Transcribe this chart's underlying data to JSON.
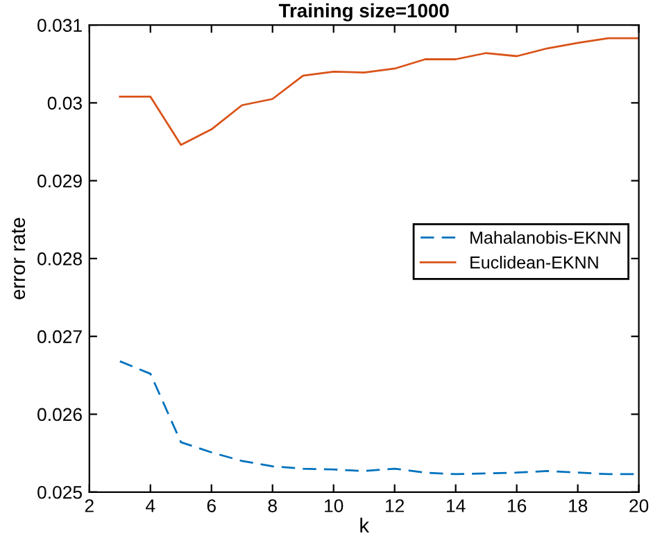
{
  "chart_data": {
    "type": "line",
    "title": "Training size=1000",
    "xlabel": "k",
    "ylabel": "error rate",
    "x": [
      3,
      4,
      5,
      6,
      7,
      8,
      9,
      10,
      11,
      12,
      13,
      14,
      15,
      16,
      17,
      18,
      19,
      20
    ],
    "series": [
      {
        "name": "Mahalanobis-EKNN",
        "color": "#0072bd",
        "line_style": "dashed",
        "values": [
          0.02668,
          0.02652,
          0.02564,
          0.02551,
          0.0254,
          0.02533,
          0.0253,
          0.02529,
          0.02527,
          0.0253,
          0.02525,
          0.02523,
          0.02524,
          0.02525,
          0.02527,
          0.02525,
          0.02523,
          0.02523
        ]
      },
      {
        "name": "Euclidean-EKNN",
        "color": "#d95319",
        "line_style": "solid",
        "values": [
          0.03008,
          0.03008,
          0.02946,
          0.02966,
          0.02997,
          0.03005,
          0.03035,
          0.0304,
          0.03039,
          0.03044,
          0.03056,
          0.03056,
          0.03064,
          0.0306,
          0.0307,
          0.03077,
          0.03083,
          0.03083
        ]
      }
    ],
    "xlim": [
      2,
      20
    ],
    "xticks": [
      2,
      4,
      6,
      8,
      10,
      12,
      14,
      16,
      18,
      20
    ],
    "ylim": [
      0.025,
      0.031
    ],
    "yticks": [
      0.025,
      0.026,
      0.027,
      0.028,
      0.029,
      0.03,
      0.031
    ],
    "grid": false,
    "legend": "center right",
    "marker": "none"
  }
}
